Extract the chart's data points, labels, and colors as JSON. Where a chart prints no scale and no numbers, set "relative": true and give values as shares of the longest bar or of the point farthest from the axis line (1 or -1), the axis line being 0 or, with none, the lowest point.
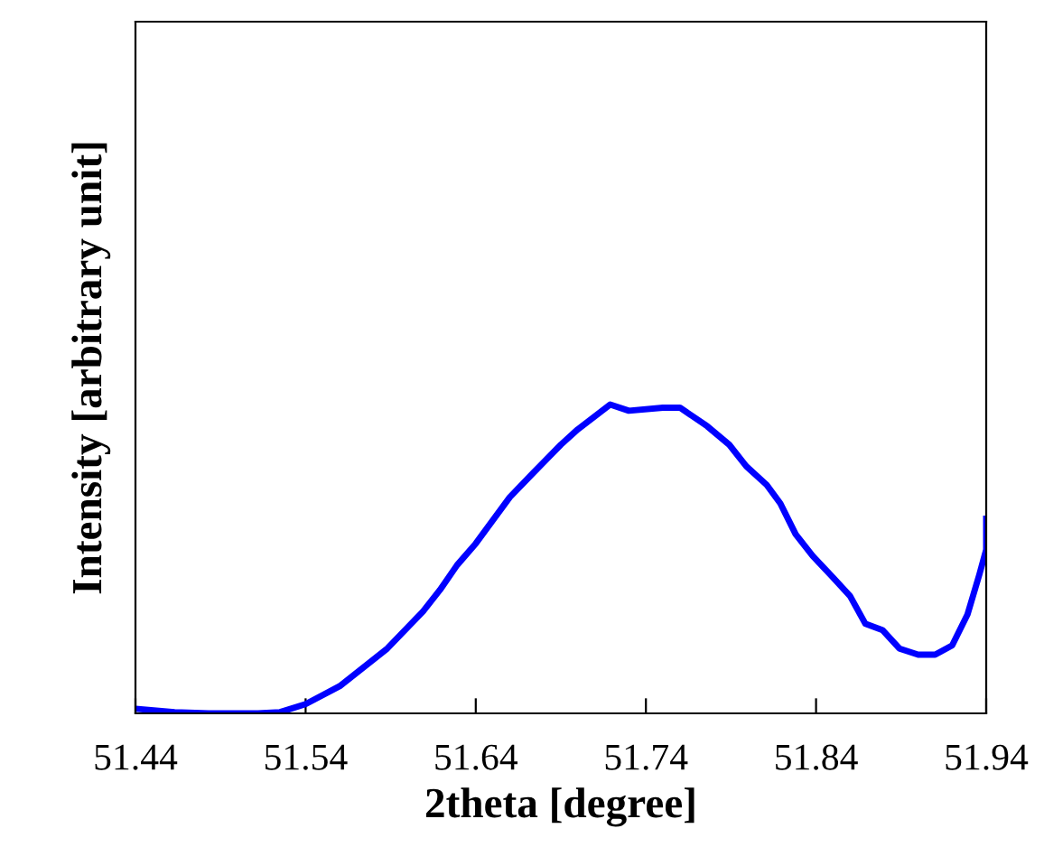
{
  "chart_data": {
    "type": "line",
    "xlabel": "2theta [degree]",
    "ylabel": "Intensity [arbitrary unit]",
    "relative": true,
    "xlim": [
      51.44,
      51.94
    ],
    "xticks": [
      51.44,
      51.54,
      51.64,
      51.74,
      51.84,
      51.94
    ],
    "marker": "none",
    "line_style": "solid",
    "series": [
      {
        "color": "#0000ff",
        "x": [
          51.44,
          51.463,
          51.483,
          51.512,
          51.525,
          51.54,
          51.56,
          51.588,
          51.609,
          51.619,
          51.629,
          51.64,
          51.66,
          51.674,
          51.69,
          51.7,
          51.719,
          51.73,
          51.75,
          51.76,
          51.776,
          51.789,
          51.799,
          51.811,
          51.819,
          51.828,
          51.838,
          51.85,
          51.86,
          51.869,
          51.879,
          51.889,
          51.9,
          51.91,
          51.92,
          51.929,
          51.936,
          51.94,
          51.94
        ],
        "values": [
          0.015,
          0.004,
          0,
          0,
          0.004,
          0.03,
          0.088,
          0.21,
          0.33,
          0.4,
          0.48,
          0.55,
          0.7,
          0.78,
          0.87,
          0.92,
          1.0,
          0.98,
          0.99,
          0.99,
          0.93,
          0.87,
          0.8,
          0.74,
          0.68,
          0.58,
          0.51,
          0.44,
          0.38,
          0.29,
          0.27,
          0.21,
          0.19,
          0.19,
          0.22,
          0.32,
          0.45,
          0.53,
          0.63
        ]
      }
    ]
  }
}
